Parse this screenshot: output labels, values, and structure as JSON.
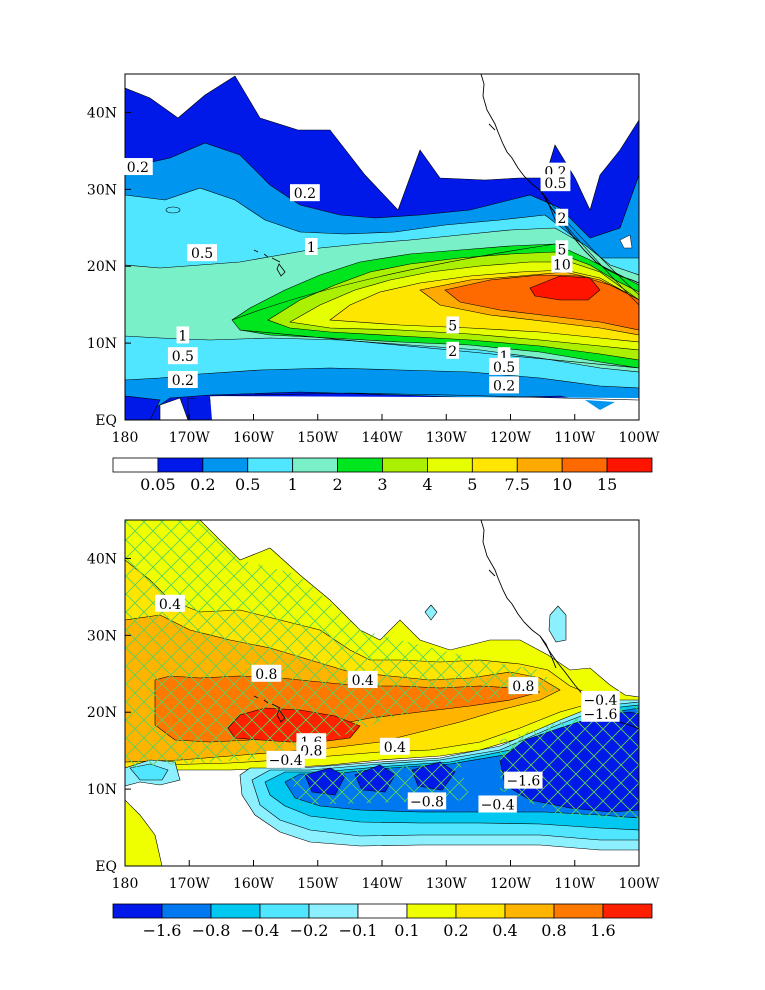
{
  "chart_data": [
    {
      "type": "heatmap",
      "title": "",
      "region": {
        "lon_range": [
          "180",
          "100W"
        ],
        "lat_range": [
          "EQ",
          "45N"
        ]
      },
      "xticks": [
        "180",
        "170W",
        "160W",
        "150W",
        "140W",
        "130W",
        "120W",
        "110W",
        "100W"
      ],
      "yticks": [
        "EQ",
        "10N",
        "20N",
        "30N",
        "40N"
      ],
      "colorbar_labels": [
        "0.05",
        "0.2",
        "0.5",
        "1",
        "2",
        "3",
        "4",
        "5",
        "7.5",
        "10",
        "15"
      ],
      "contour_labels": [
        {
          "text": "0.2",
          "lon": 178,
          "lat": 32.9
        },
        {
          "text": "0.2",
          "lon": 152,
          "lat": 29.5
        },
        {
          "text": "0.5",
          "lon": 168,
          "lat": 21.7
        },
        {
          "text": "1",
          "lon": 151,
          "lat": 22.5
        },
        {
          "text": "0.2",
          "lon": 113,
          "lat": 32.3
        },
        {
          "text": "0.5",
          "lon": 113,
          "lat": 30.8
        },
        {
          "text": "2",
          "lon": 112,
          "lat": 26.3
        },
        {
          "text": "5",
          "lon": 112,
          "lat": 22.2
        },
        {
          "text": "10",
          "lon": 112,
          "lat": 20.2
        },
        {
          "text": "1",
          "lon": 171,
          "lat": 11.0
        },
        {
          "text": "0.5",
          "lon": 171,
          "lat": 8.3
        },
        {
          "text": "0.2",
          "lon": 171,
          "lat": 5.2
        },
        {
          "text": "5",
          "lon": 129,
          "lat": 12.3
        },
        {
          "text": "2",
          "lon": 129,
          "lat": 9.0
        },
        {
          "text": "1",
          "lon": 121,
          "lat": 8.3
        },
        {
          "text": "0.5",
          "lon": 121,
          "lat": 6.9
        },
        {
          "text": "0.2",
          "lon": 121,
          "lat": 4.5
        }
      ]
    },
    {
      "type": "heatmap",
      "title": "",
      "region": {
        "lon_range": [
          "180",
          "100W"
        ],
        "lat_range": [
          "EQ",
          "45N"
        ]
      },
      "xticks": [
        "180",
        "170W",
        "160W",
        "150W",
        "140W",
        "130W",
        "120W",
        "110W",
        "100W"
      ],
      "yticks": [
        "EQ",
        "10N",
        "20N",
        "30N",
        "40N"
      ],
      "colorbar_labels": [
        "−1.6",
        "−0.8",
        "−0.4",
        "−0.2",
        "−0.1",
        "0.1",
        "0.2",
        "0.4",
        "0.8",
        "1.6"
      ],
      "hatching": "significance (green crosshatch)",
      "contour_labels": [
        {
          "text": "0.4",
          "lon": 173,
          "lat": 34.1
        },
        {
          "text": "0.8",
          "lon": 158,
          "lat": 25.0
        },
        {
          "text": "0.4",
          "lon": 143,
          "lat": 24.2
        },
        {
          "text": "0.8",
          "lon": 118,
          "lat": 23.4
        },
        {
          "text": "−0.4",
          "lon": 106,
          "lat": 21.6
        },
        {
          "text": "−1.6",
          "lon": 106,
          "lat": 19.8
        },
        {
          "text": "1.6",
          "lon": 151,
          "lat": 16.1
        },
        {
          "text": "0.8",
          "lon": 151,
          "lat": 15.0
        },
        {
          "text": "−0.4",
          "lon": 155,
          "lat": 13.8
        },
        {
          "text": "0.4",
          "lon": 138,
          "lat": 15.5
        },
        {
          "text": "−1.6",
          "lon": 118,
          "lat": 11.1
        },
        {
          "text": "−0.8",
          "lon": 133,
          "lat": 8.4
        },
        {
          "text": "−0.4",
          "lon": 122,
          "lat": 8.0
        }
      ]
    }
  ],
  "colors": {
    "top_scale": [
      "#ffffff",
      "#0018e8",
      "#0096f0",
      "#50e6ff",
      "#7af0c8",
      "#00e61e",
      "#aaf000",
      "#e6ff00",
      "#ffe600",
      "#ffaa00",
      "#ff6a00",
      "#ff1400"
    ],
    "bottom_scale": [
      "#0018e8",
      "#0078f0",
      "#00c8f0",
      "#50e6ff",
      "#8cf0ff",
      "#ffffff",
      "#f0ff00",
      "#ffe600",
      "#ffb400",
      "#ff7800",
      "#ff2000"
    ],
    "hatch": "#5ad25a"
  }
}
